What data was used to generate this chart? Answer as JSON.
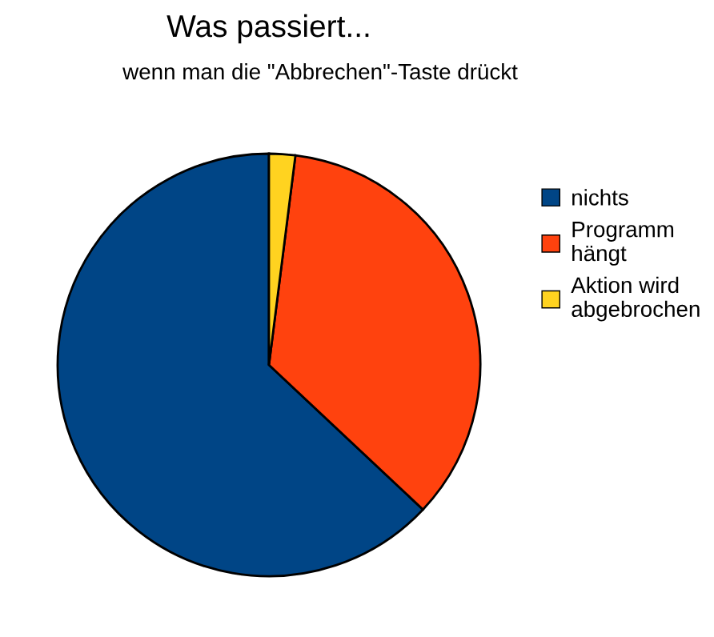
{
  "chart_data": {
    "type": "pie",
    "title": "Was passiert...",
    "subtitle": "wenn man die \"Abbrechen\"-Taste drückt",
    "categories": [
      "nichts",
      "Programm hängt",
      "Aktion wird abgebrochen"
    ],
    "values": [
      63,
      35,
      2
    ],
    "colors": [
      "#004586",
      "#ff420e",
      "#ffd320"
    ],
    "legend": "right"
  }
}
